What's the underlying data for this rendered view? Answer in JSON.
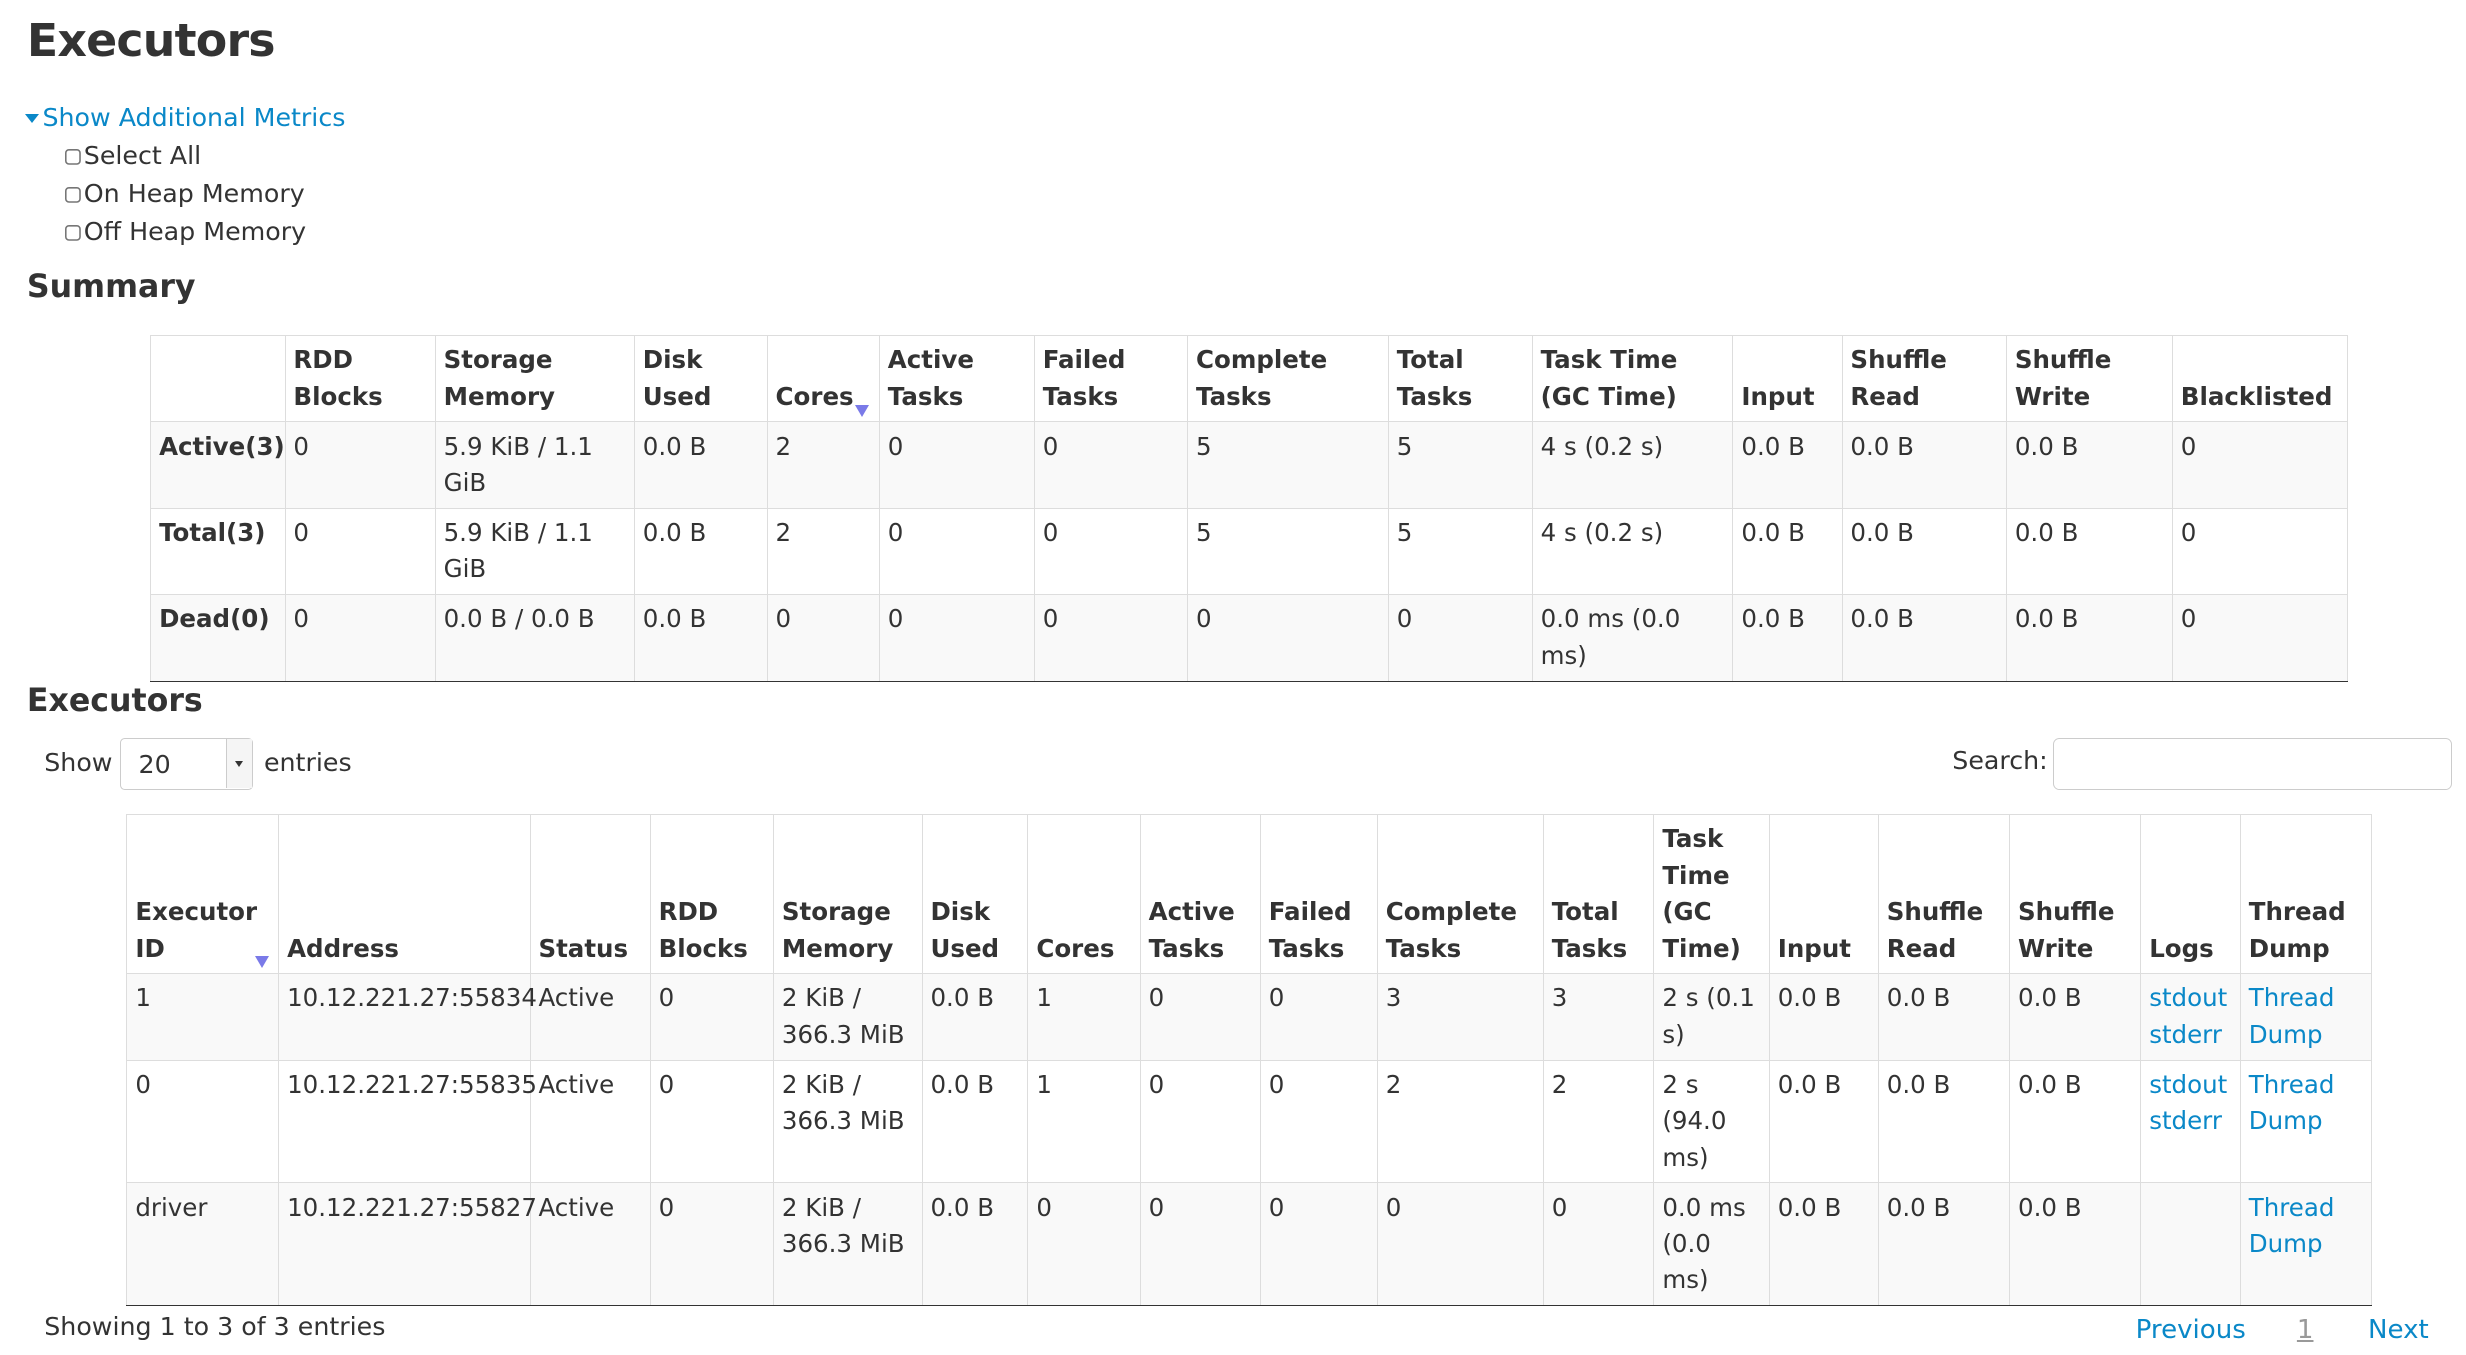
{
  "title": "Executors",
  "metrics": {
    "toggle_label": "Show Additional Metrics",
    "options": [
      "Select All",
      "On Heap Memory",
      "Off Heap Memory"
    ]
  },
  "summary": {
    "heading": "Summary",
    "columns": [
      "",
      "RDD Blocks",
      "Storage Memory",
      "Disk Used",
      "Cores",
      "Active Tasks",
      "Failed Tasks",
      "Complete Tasks",
      "Total Tasks",
      "Task Time (GC Time)",
      "Input",
      "Shuffle Read",
      "Shuffle Write",
      "Blacklisted"
    ],
    "sorted_column": "Cores",
    "rows": [
      [
        "Active(3)",
        "0",
        "5.9 KiB / 1.1 GiB",
        "0.0 B",
        "2",
        "0",
        "0",
        "5",
        "5",
        "4 s (0.2 s)",
        "0.0 B",
        "0.0 B",
        "0.0 B",
        "0"
      ],
      [
        "Total(3)",
        "0",
        "5.9 KiB / 1.1 GiB",
        "0.0 B",
        "2",
        "0",
        "0",
        "5",
        "5",
        "4 s (0.2 s)",
        "0.0 B",
        "0.0 B",
        "0.0 B",
        "0"
      ],
      [
        "Dead(0)",
        "0",
        "0.0 B / 0.0 B",
        "0.0 B",
        "0",
        "0",
        "0",
        "0",
        "0",
        "0.0 ms (0.0 ms)",
        "0.0 B",
        "0.0 B",
        "0.0 B",
        "0"
      ]
    ]
  },
  "executors": {
    "heading": "Executors",
    "show_label": "Show",
    "entries_label": "entries",
    "page_size": "20",
    "search_label": "Search:",
    "search_value": "",
    "columns": [
      "Executor ID",
      "Address",
      "Status",
      "RDD Blocks",
      "Storage Memory",
      "Disk Used",
      "Cores",
      "Active Tasks",
      "Failed Tasks",
      "Complete Tasks",
      "Total Tasks",
      "Task Time (GC Time)",
      "Input",
      "Shuffle Read",
      "Shuffle Write",
      "Logs",
      "Thread Dump"
    ],
    "sorted_column": "Executor ID",
    "rows": [
      {
        "cells": [
          "1",
          "10.12.221.27:55834",
          "Active",
          "0",
          "2 KiB / 366.3 MiB",
          "0.0 B",
          "1",
          "0",
          "0",
          "3",
          "3",
          "2 s (0.1 s)",
          "0.0 B",
          "0.0 B",
          "0.0 B"
        ],
        "logs": [
          "stdout",
          "stderr"
        ],
        "dump": "Thread Dump"
      },
      {
        "cells": [
          "0",
          "10.12.221.27:55835",
          "Active",
          "0",
          "2 KiB / 366.3 MiB",
          "0.0 B",
          "1",
          "0",
          "0",
          "2",
          "2",
          "2 s (94.0 ms)",
          "0.0 B",
          "0.0 B",
          "0.0 B"
        ],
        "logs": [
          "stdout",
          "stderr"
        ],
        "dump": "Thread Dump"
      },
      {
        "cells": [
          "driver",
          "10.12.221.27:55827",
          "Active",
          "0",
          "2 KiB / 366.3 MiB",
          "0.0 B",
          "0",
          "0",
          "0",
          "0",
          "0",
          "0.0 ms (0.0 ms)",
          "0.0 B",
          "0.0 B",
          "0.0 B"
        ],
        "logs": [],
        "dump": "Thread Dump"
      }
    ],
    "info": "Showing 1 to 3 of 3 entries",
    "pagination": {
      "previous": "Previous",
      "current": "1",
      "next": "Next"
    }
  },
  "colors": {
    "link": "#0a88c8",
    "sort_arrow": "#7a7ae8"
  }
}
